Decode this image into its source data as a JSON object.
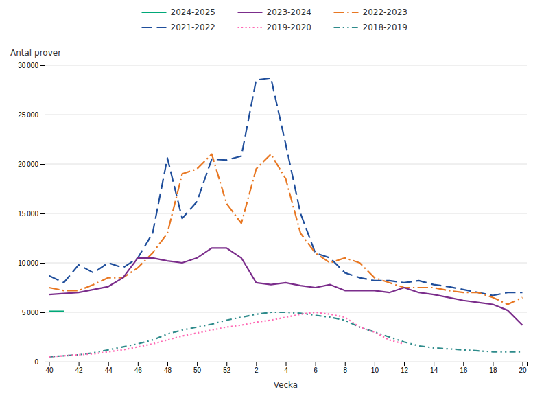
{
  "chart_data": {
    "type": "line",
    "xlabel": "Vecka",
    "ylabel": "Antal prover",
    "categories": [
      "40",
      null,
      "42",
      null,
      "44",
      null,
      "46",
      null,
      "48",
      null,
      "50",
      null,
      "52",
      null,
      "2",
      null,
      "4",
      null,
      "6",
      null,
      "8",
      null,
      "10",
      null,
      "12",
      null,
      "14",
      null,
      "16",
      null,
      "18",
      null,
      "20"
    ],
    "series": [
      {
        "name": "2024-2025",
        "color": "#00A878",
        "line_style": "solid",
        "values": [
          5100,
          5100,
          null,
          null,
          null,
          null,
          null,
          null,
          null,
          null,
          null,
          null,
          null,
          null,
          null,
          null,
          null,
          null,
          null,
          null,
          null,
          null,
          null,
          null,
          null,
          null,
          null,
          null,
          null,
          null,
          null,
          null,
          null
        ]
      },
      {
        "name": "2023-2024",
        "color": "#7B2D8B",
        "line_style": "solid",
        "values": [
          6800,
          6900,
          7000,
          7300,
          7600,
          8500,
          10500,
          10500,
          10200,
          10000,
          10500,
          11500,
          11500,
          10500,
          8000,
          7800,
          8000,
          7700,
          7500,
          7800,
          7200,
          7200,
          7200,
          7000,
          7500,
          7000,
          6800,
          6500,
          6200,
          6000,
          5800,
          5200,
          3700
        ]
      },
      {
        "name": "2022-2023",
        "color": "#E87722",
        "line_style": "dashdot",
        "values": [
          7500,
          7200,
          7200,
          7800,
          8500,
          8500,
          9500,
          11000,
          13000,
          19000,
          19500,
          21000,
          16000,
          14000,
          19500,
          21000,
          18500,
          13000,
          11000,
          10000,
          10500,
          10000,
          8500,
          8000,
          7500,
          7500,
          7500,
          7200,
          7000,
          7000,
          6500,
          5800,
          6500
        ]
      },
      {
        "name": "2021-2022",
        "color": "#1F4E9B",
        "line_style": "dashed",
        "values": [
          8700,
          8000,
          9800,
          9000,
          10000,
          9500,
          10500,
          13000,
          20600,
          14500,
          16200,
          20500,
          20400,
          20800,
          28500,
          28700,
          22000,
          15000,
          11000,
          10500,
          9000,
          8500,
          8200,
          8200,
          8000,
          8200,
          7800,
          7600,
          7300,
          7000,
          6700,
          7000,
          7000
        ]
      },
      {
        "name": "2019-2020",
        "color": "#FF69B4",
        "line_style": "dotted",
        "values": [
          500,
          600,
          700,
          800,
          1000,
          1200,
          1500,
          1800,
          2200,
          2600,
          2900,
          3200,
          3500,
          3700,
          4000,
          4200,
          4500,
          4800,
          5000,
          4800,
          4500,
          3500,
          3000,
          2200,
          1800,
          null,
          null,
          null,
          null,
          null,
          null,
          null,
          null
        ]
      },
      {
        "name": "2018-2019",
        "color": "#2E8B8B",
        "line_style": "dashdotdot",
        "values": [
          500,
          600,
          700,
          900,
          1200,
          1500,
          1800,
          2200,
          2800,
          3200,
          3500,
          3800,
          4200,
          4500,
          4800,
          5000,
          5000,
          4900,
          4700,
          4500,
          4200,
          3500,
          3000,
          2500,
          2000,
          1600,
          1400,
          1300,
          1200,
          1100,
          1000,
          1000,
          1000
        ]
      }
    ],
    "ylim": [
      0,
      30000
    ],
    "yticks": [
      0,
      {
        "value": 5000,
        "label": "5 000"
      },
      {
        "value": 10000,
        "label": "10 000"
      },
      {
        "value": 15000,
        "label": "15 000"
      },
      {
        "value": 20000,
        "label": "20 000"
      },
      {
        "value": 25000,
        "label": "25 000"
      },
      {
        "value": 30000,
        "label": "30 000"
      }
    ],
    "grid": true,
    "legend": "top"
  }
}
